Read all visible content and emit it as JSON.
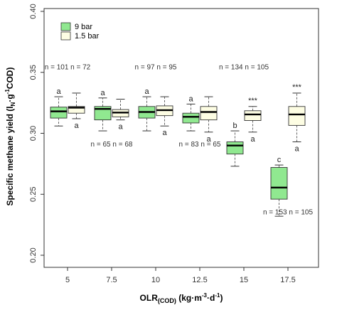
{
  "chart_data": {
    "type": "box",
    "xlabel_main": "OLR",
    "xlabel_sub": "(COD)",
    "xlabel_units": " (kg·m",
    "xlabel_sup1": "-3",
    "xlabel_mid": "·d",
    "xlabel_sup2": "-1",
    "xlabel_end": ")",
    "ylabel_main": "Specific methane yield (l",
    "ylabel_sub": "N",
    "ylabel_mid": "·g",
    "ylabel_sup": "-1",
    "ylabel_end": "COD)",
    "ylim": [
      0.2,
      0.4
    ],
    "yticks": [
      "0.20",
      "0.25",
      "0.30",
      "0.35",
      "0.40"
    ],
    "categories": [
      "5",
      "7.5",
      "10",
      "12.5",
      "15",
      "17.5"
    ],
    "legend": [
      {
        "name": "9 bar",
        "color": "#90e890"
      },
      {
        "name": "1.5 bar",
        "color": "#fdfde3"
      }
    ],
    "series": [
      {
        "name": "9 bar",
        "color": "#90e890",
        "boxes": [
          {
            "min": 0.306,
            "q1": 0.3125,
            "median": 0.318,
            "q3": 0.3215,
            "max": 0.33
          },
          {
            "min": 0.302,
            "q1": 0.311,
            "median": 0.32,
            "q3": 0.322,
            "max": 0.329
          },
          {
            "min": 0.302,
            "q1": 0.3125,
            "median": 0.3175,
            "q3": 0.322,
            "max": 0.33
          },
          {
            "min": 0.302,
            "q1": 0.3085,
            "median": 0.3135,
            "q3": 0.3165,
            "max": 0.324
          },
          {
            "min": 0.273,
            "q1": 0.283,
            "median": 0.29,
            "q3": 0.293,
            "max": 0.302
          },
          {
            "min": 0.232,
            "q1": 0.246,
            "median": 0.2555,
            "q3": 0.272,
            "max": 0.274
          }
        ],
        "letters": [
          "a",
          "a",
          "a",
          "a",
          "b",
          "c"
        ]
      },
      {
        "name": "1.5 bar",
        "color": "#fdfde3",
        "boxes": [
          {
            "min": 0.312,
            "q1": 0.3165,
            "median": 0.321,
            "q3": 0.322,
            "max": 0.333
          },
          {
            "min": 0.311,
            "q1": 0.3135,
            "median": 0.317,
            "q3": 0.3195,
            "max": 0.328
          },
          {
            "min": 0.306,
            "q1": 0.3145,
            "median": 0.319,
            "q3": 0.3225,
            "max": 0.33
          },
          {
            "min": 0.301,
            "q1": 0.311,
            "median": 0.3175,
            "q3": 0.322,
            "max": 0.33
          },
          {
            "min": 0.301,
            "q1": 0.3105,
            "median": 0.3155,
            "q3": 0.3185,
            "max": 0.322
          },
          {
            "min": 0.293,
            "q1": 0.3065,
            "median": 0.3155,
            "q3": 0.322,
            "max": 0.333
          }
        ],
        "letters": [
          "a",
          "a",
          "a",
          "a",
          "a",
          "a"
        ],
        "significance": [
          "",
          "",
          "",
          "",
          "***",
          "***"
        ]
      }
    ],
    "annotations": [
      {
        "text": "n = 101 n = 72",
        "x": 5,
        "y": 0.3525
      },
      {
        "text": "n = 65 n = 68",
        "x": 7.5,
        "y": 0.2893
      },
      {
        "text": "n = 97 n = 95",
        "x": 10,
        "y": 0.3525
      },
      {
        "text": "n = 83 n = 65",
        "x": 12.5,
        "y": 0.2893
      },
      {
        "text": "n = 134 n = 105",
        "x": 15,
        "y": 0.3525
      },
      {
        "text": "n = 153 n = 105",
        "x": 17.5,
        "y": 0.2335
      }
    ]
  }
}
